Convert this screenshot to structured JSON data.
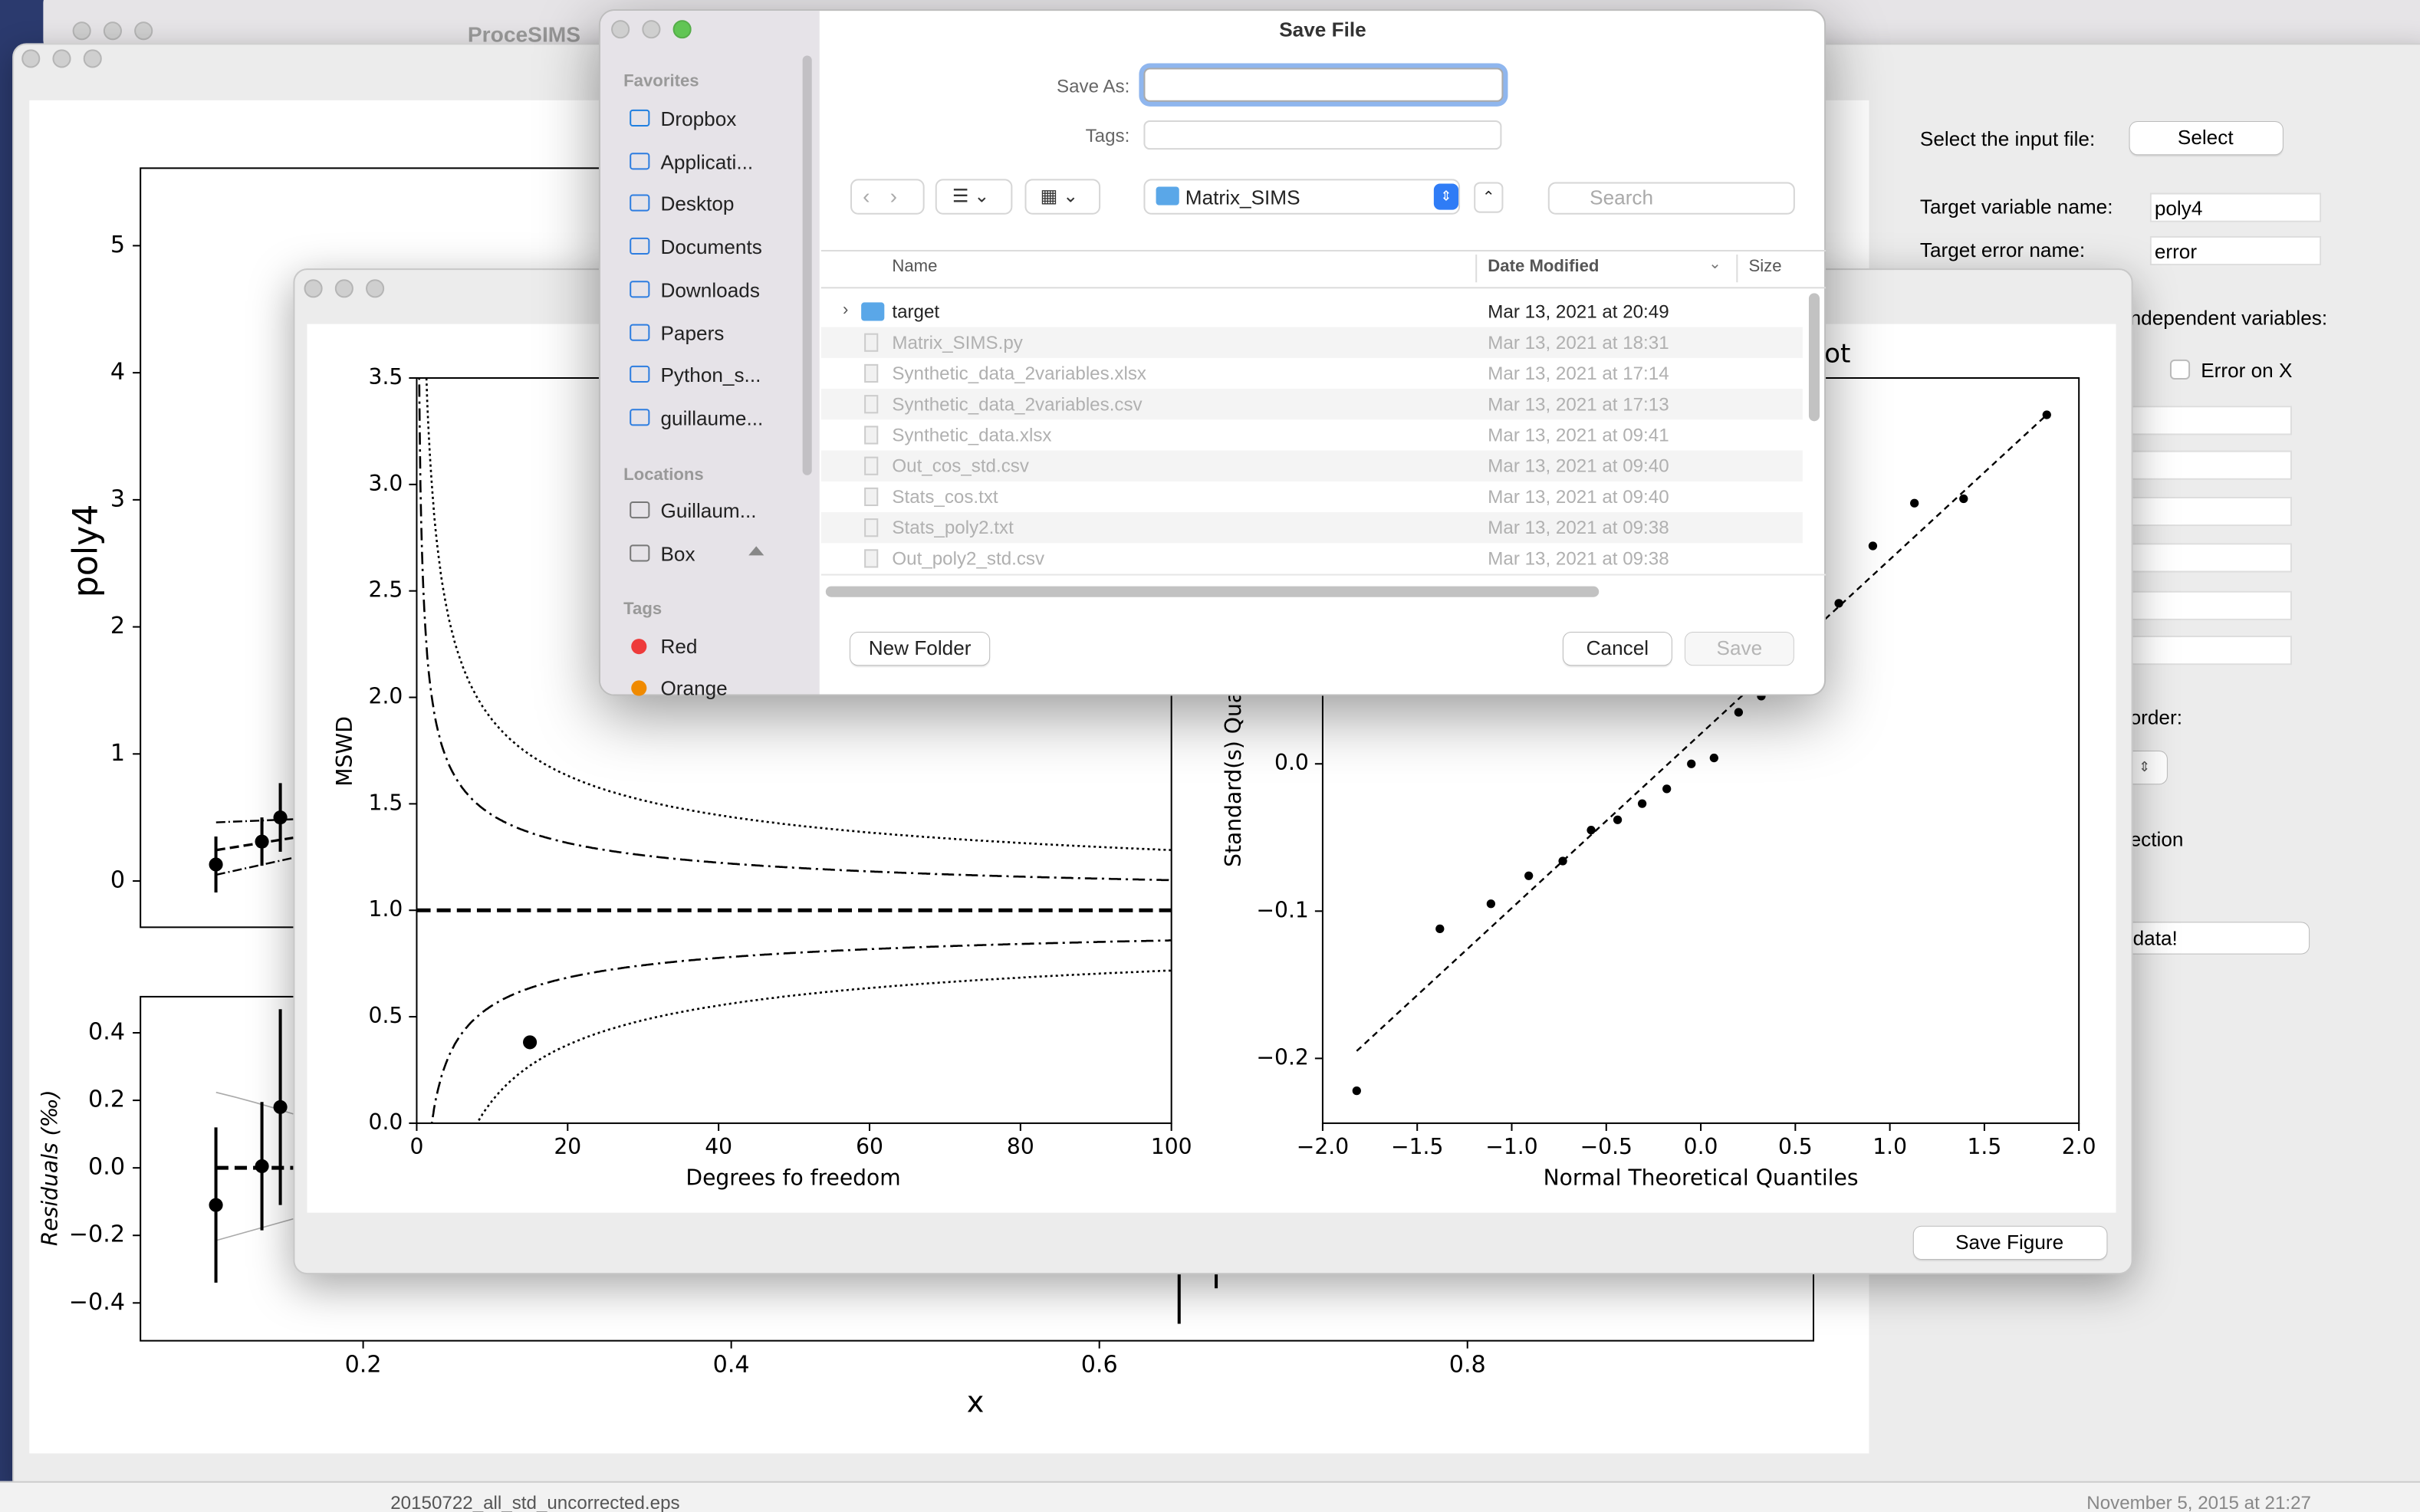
{
  "background_window": {
    "title": "ProceSIMS",
    "bottom_file": "20150722_all_std_uncorrected.eps",
    "bottom_date": "November 5, 2015 at 21:27"
  },
  "main_window": {
    "fit_plot": {
      "ylabel": "poly4",
      "xlim": [
        0.079,
        0.988
      ],
      "ylim": [
        -0.364,
        5.61
      ],
      "yticks": [
        0,
        1,
        2,
        3,
        4,
        5
      ],
      "points": {
        "x": [
          0.12,
          0.145,
          0.155
        ],
        "y": [
          0.13,
          0.31,
          0.5
        ],
        "errors": [
          0.22,
          0.19,
          0.27
        ]
      }
    },
    "residual_plot": {
      "ylabel": "Residuals (‰)",
      "xlabel": "x",
      "xlim": [
        0.079,
        0.988
      ],
      "ylim": [
        -0.512,
        0.507
      ],
      "xticks": [
        0.2,
        0.4,
        0.6,
        0.8
      ],
      "yticks": [
        {
          "value": 0.4,
          "label": "0.4"
        },
        {
          "value": 0.2,
          "label": "0.2"
        },
        {
          "value": 0,
          "label": "0.0"
        },
        {
          "value": -0.2,
          "label": "−0.2"
        },
        {
          "value": -0.4,
          "label": "−0.4"
        }
      ],
      "points": {
        "x": [
          0.12,
          0.145,
          0.155
        ],
        "y": [
          -0.11,
          0.005,
          0.18
        ],
        "errors": [
          0.23,
          0.19,
          0.29
        ]
      }
    },
    "panel": {
      "select_label": "Select the input file:",
      "select_button": "Select",
      "target_variable_label": "Target variable name:",
      "target_variable": "poly4",
      "target_error_label": "Target error name:",
      "target_error": "error",
      "independent_label": "ndependent variables:",
      "error_on_x": "Error on X",
      "order_label": "order:",
      "correction_label": "ection",
      "process_button": "data!"
    }
  },
  "figure_window": {
    "mswd_plot": {
      "ylabel": "MSWD",
      "xlabel": "Degrees fo freedom",
      "xlim": [
        0,
        100
      ],
      "ylim": [
        0,
        3.5
      ],
      "xticks": [
        0,
        20,
        40,
        60,
        80,
        100
      ],
      "yticks": [
        {
          "value": 0,
          "label": "0.0"
        },
        {
          "value": 0.5,
          "label": "0.5"
        },
        {
          "value": 1,
          "label": "1.0"
        },
        {
          "value": 1.5,
          "label": "1.5"
        },
        {
          "value": 2,
          "label": "2.0"
        },
        {
          "value": 2.5,
          "label": "2.5"
        },
        {
          "value": 3,
          "label": "3.0"
        },
        {
          "value": 3.5,
          "label": "3.5"
        }
      ],
      "reference": 1,
      "point": {
        "x": 15,
        "y": 0.38
      }
    },
    "qq_plot": {
      "title": "ot",
      "ylabel": "Standard(s) Qua",
      "xlabel": "Normal Theoretical Quantiles",
      "xlim": [
        -2,
        2
      ],
      "ylim": [
        -0.244,
        0.262
      ],
      "xticks": [
        {
          "value": -2,
          "label": "−2.0"
        },
        {
          "value": -1.5,
          "label": "−1.5"
        },
        {
          "value": -1,
          "label": "−1.0"
        },
        {
          "value": -0.5,
          "label": "−0.5"
        },
        {
          "value": 0,
          "label": "0.0"
        },
        {
          "value": 0.5,
          "label": "0.5"
        },
        {
          "value": 1,
          "label": "1.0"
        },
        {
          "value": 1.5,
          "label": "1.5"
        },
        {
          "value": 2,
          "label": "2.0"
        }
      ],
      "yticks": [
        {
          "value": 0,
          "label": "0.0"
        },
        {
          "value": -0.1,
          "label": "−0.1"
        },
        {
          "value": -0.2,
          "label": "−0.2"
        }
      ],
      "points": {
        "x": [
          -1.82,
          -1.38,
          -1.11,
          -0.91,
          -0.73,
          -0.58,
          -0.44,
          -0.31,
          -0.18,
          -0.05,
          0.07,
          0.2,
          0.32,
          0.73,
          0.91,
          1.13,
          1.39,
          1.83
        ],
        "y": [
          -0.222,
          -0.112,
          -0.095,
          -0.076,
          -0.066,
          -0.045,
          -0.038,
          -0.027,
          -0.017,
          0,
          0.004,
          0.035,
          0.046,
          0.109,
          0.148,
          0.177,
          0.18,
          0.237
        ]
      },
      "reference_line": {
        "x": [
          -1.82,
          1.83
        ],
        "y": [
          -0.195,
          0.237
        ]
      }
    },
    "save_button": "Save Figure"
  },
  "save_dialog": {
    "title": "Save File",
    "save_as_label": "Save As:",
    "tags_label": "Tags:",
    "folder": "Matrix_SIMS",
    "search_placeholder": "Search",
    "sidebar": {
      "favorites_header": "Favorites",
      "favorites": [
        "Dropbox",
        "Applicati...",
        "Desktop",
        "Documents",
        "Downloads",
        "Papers",
        "Python_s...",
        "guillaume..."
      ],
      "locations_header": "Locations",
      "locations": [
        "Guillaum...",
        "Box"
      ],
      "tags_header": "Tags",
      "tags": [
        "Red",
        "Orange"
      ]
    },
    "columns": [
      "Name",
      "Date Modified",
      "Size"
    ],
    "files": [
      [
        "target",
        "Mar 13, 2021 at 20:49"
      ],
      [
        "Matrix_SIMS.py",
        "Mar 13, 2021 at 18:31"
      ],
      [
        "Synthetic_data_2variables.xlsx",
        "Mar 13, 2021 at 17:14"
      ],
      [
        "Synthetic_data_2variables.csv",
        "Mar 13, 2021 at 17:13"
      ],
      [
        "Synthetic_data.xlsx",
        "Mar 13, 2021 at 09:41"
      ],
      [
        "Out_cos_std.csv",
        "Mar 13, 2021 at 09:40"
      ],
      [
        "Stats_cos.txt",
        "Mar 13, 2021 at 09:40"
      ],
      [
        "Stats_poly2.txt",
        "Mar 13, 2021 at 09:38"
      ],
      [
        "Out_poly2_std.csv",
        "Mar 13, 2021 at 09:38"
      ]
    ],
    "new_folder_button": "New Folder",
    "cancel_button": "Cancel",
    "save_button": "Save"
  }
}
